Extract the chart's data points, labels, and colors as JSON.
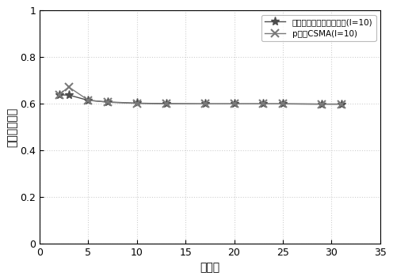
{
  "line1_label": "基于载波侦听的协议序列(l=10)",
  "line2_label": "p坚持CSMA(l=10)",
  "line1_x": [
    2,
    3,
    5,
    7,
    10,
    13,
    17,
    20,
    23,
    25,
    29,
    31
  ],
  "line1_y": [
    0.638,
    0.638,
    0.615,
    0.608,
    0.603,
    0.601,
    0.6,
    0.6,
    0.6,
    0.6,
    0.599,
    0.599
  ],
  "line2_x": [
    2,
    3,
    5,
    7,
    10,
    13,
    17,
    20,
    23,
    25,
    29,
    31
  ],
  "line2_y": [
    0.64,
    0.672,
    0.616,
    0.607,
    0.602,
    0.6,
    0.6,
    0.6,
    0.6,
    0.6,
    0.599,
    0.599
  ],
  "line1_color": "#4d4d4d",
  "line2_color": "#7a7a7a",
  "xlabel": "用户数",
  "ylabel": "归一化吞吐率",
  "xlim": [
    0,
    35
  ],
  "ylim": [
    0,
    1.0
  ],
  "xticks": [
    0,
    5,
    10,
    15,
    20,
    25,
    30,
    35
  ],
  "yticks": [
    0,
    0.2,
    0.4,
    0.6,
    0.8,
    1.0
  ],
  "grid_color": "#d0d0d0",
  "bg_color": "#ffffff",
  "figure_bg": "#ffffff"
}
